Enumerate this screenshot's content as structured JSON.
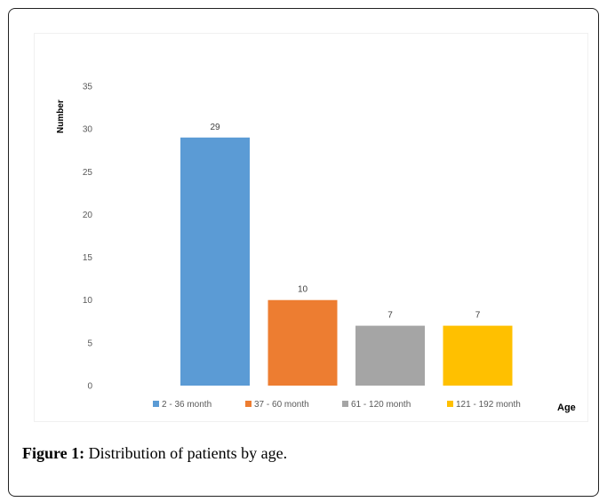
{
  "caption": {
    "label": "Figure 1:",
    "text": " Distribution of patients by age."
  },
  "chart_data": {
    "type": "bar",
    "xlabel": "Age",
    "ylabel": "Number",
    "ylim": [
      0,
      35
    ],
    "yticks": [
      0,
      5,
      10,
      15,
      20,
      25,
      30,
      35
    ],
    "grid": false,
    "legend_position": "bottom",
    "categories": [
      "2 - 36 month",
      "37 - 60 month",
      "61 - 120 month",
      "121 - 192 month"
    ],
    "values": [
      29,
      10,
      7,
      7
    ],
    "colors": [
      "#5b9bd5",
      "#ed7d31",
      "#a5a5a5",
      "#ffc000"
    ]
  }
}
